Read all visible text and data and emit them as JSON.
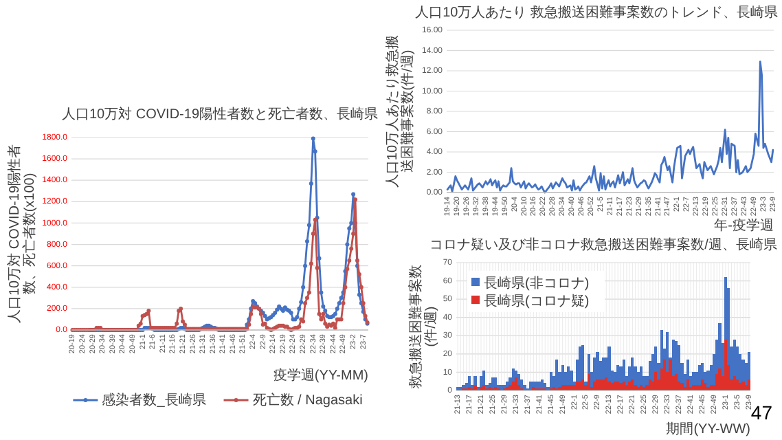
{
  "chart_data": [
    {
      "type": "line",
      "title": "人口10万対 COVID-19陽性者数と死亡者数、長崎県",
      "ylabel": "人口10万対 COVID-19陽性者数、死亡者数(x100)",
      "xlabel": "疫学週(YY-MM)",
      "ylim": [
        0,
        1800
      ],
      "categories": [
        "20-19",
        null,
        null,
        null,
        null,
        "20-24",
        null,
        null,
        null,
        null,
        "20-29",
        null,
        null,
        null,
        null,
        "20-34",
        null,
        null,
        null,
        null,
        "20-39",
        null,
        null,
        null,
        null,
        "20-44",
        null,
        null,
        null,
        null,
        "20-49",
        null,
        null,
        null,
        null,
        "21-1",
        null,
        null,
        null,
        null,
        "21-6",
        null,
        null,
        null,
        null,
        "21-11",
        null,
        null,
        null,
        null,
        "21-16",
        null,
        null,
        null,
        null,
        "21-21",
        null,
        null,
        null,
        null,
        "21-26",
        null,
        null,
        null,
        null,
        "21-31",
        null,
        null,
        null,
        null,
        "21-36",
        null,
        null,
        null,
        null,
        "21-41",
        null,
        null,
        null,
        null,
        "21-46",
        null,
        null,
        null,
        null,
        "21-51",
        null,
        null,
        null,
        null,
        "22-4",
        null,
        null,
        null,
        null,
        "22-9",
        null,
        null,
        null,
        null,
        "22-14",
        null,
        null,
        null,
        null,
        "22-19",
        null,
        null,
        null,
        null,
        "22-24",
        null,
        null,
        null,
        null,
        "22-29",
        null,
        null,
        null,
        null,
        "22-34",
        null,
        null,
        null,
        null,
        "22-39",
        null,
        null,
        null,
        null,
        "22-44",
        null,
        null,
        null,
        null,
        "22-49",
        null,
        null,
        null,
        null,
        "23-2",
        null,
        null,
        null,
        null,
        "23-7",
        null,
        null
      ],
      "yticks": [
        {
          "value": 0,
          "label": "0.0"
        },
        {
          "value": 200,
          "label": "200.0"
        },
        {
          "value": 400,
          "label": "400.0"
        },
        {
          "value": 600,
          "label": "600.0"
        },
        {
          "value": 800,
          "label": "800.0"
        },
        {
          "value": 1000,
          "label": "1000.0"
        },
        {
          "value": 1200,
          "label": "1200.0"
        },
        {
          "value": 1400,
          "label": "1400.0"
        },
        {
          "value": 1600,
          "label": "1600.0"
        },
        {
          "value": 1800,
          "label": "1800.0"
        }
      ],
      "grid": "y",
      "legend": "bottom",
      "marker": "circle",
      "series": [
        {
          "name": "感染者数_長崎県",
          "color": "#4472c4",
          "values": [
            null,
            null,
            null,
            null,
            null,
            null,
            null,
            null,
            null,
            0,
            0,
            0,
            0,
            0,
            0,
            0,
            0,
            0,
            0,
            0,
            0,
            0,
            0,
            0,
            0,
            0,
            0,
            0,
            0,
            0,
            0,
            0,
            0,
            0,
            0,
            0,
            20,
            20,
            20,
            20,
            10,
            0,
            0,
            0,
            0,
            0,
            0,
            0,
            0,
            0,
            0,
            0,
            0,
            10,
            20,
            20,
            10,
            0,
            0,
            0,
            0,
            0,
            0,
            0,
            10,
            20,
            30,
            40,
            40,
            30,
            20,
            20,
            10,
            0,
            0,
            0,
            0,
            0,
            0,
            0,
            0,
            0,
            0,
            0,
            0,
            0,
            0,
            50,
            100,
            200,
            270,
            250,
            220,
            200,
            180,
            160,
            130,
            100,
            110,
            120,
            140,
            160,
            190,
            220,
            200,
            180,
            210,
            190,
            180,
            160,
            100,
            100,
            120,
            200,
            260,
            400,
            600,
            830,
            980,
            1370,
            1790,
            1670,
            1050,
            670,
            350,
            220,
            180,
            130,
            120,
            120,
            130,
            150,
            200,
            250,
            300,
            350,
            550,
            800,
            950,
            1000,
            1270,
            1000,
            600,
            330,
            250,
            170,
            100,
            60
          ]
        },
        {
          "name": "死亡数 / Nagasaki",
          "color": "#c0504d",
          "values": [
            0,
            0,
            0,
            0,
            0,
            0,
            0,
            0,
            0,
            0,
            0,
            0,
            20,
            20,
            20,
            0,
            0,
            0,
            0,
            0,
            0,
            0,
            0,
            0,
            0,
            0,
            0,
            0,
            0,
            0,
            0,
            0,
            0,
            40,
            60,
            130,
            140,
            150,
            180,
            20,
            20,
            20,
            20,
            20,
            20,
            20,
            20,
            20,
            20,
            20,
            20,
            20,
            60,
            180,
            200,
            80,
            50,
            10,
            10,
            10,
            10,
            10,
            10,
            10,
            10,
            10,
            10,
            10,
            10,
            10,
            10,
            10,
            10,
            10,
            10,
            10,
            10,
            10,
            10,
            10,
            10,
            10,
            10,
            10,
            10,
            10,
            10,
            10,
            50,
            150,
            220,
            210,
            210,
            200,
            150,
            50,
            60,
            20,
            10,
            0,
            10,
            20,
            30,
            40,
            40,
            40,
            30,
            30,
            10,
            0,
            10,
            20,
            20,
            30,
            100,
            80,
            250,
            300,
            350,
            620,
            900,
            1030,
            580,
            150,
            100,
            150,
            60,
            30,
            50,
            40,
            60,
            20,
            100,
            100,
            100,
            250,
            400,
            570,
            650,
            760,
            900,
            1220,
            650,
            520,
            400,
            250,
            130,
            70
          ]
        }
      ]
    },
    {
      "type": "line",
      "title": "人口10万人あたり 救急搬送困難事案数のトレンド、長崎県",
      "ylabel": "人口10万人あたり救急搬送困難事案数(件/週)",
      "xlabel": "年-疫学週",
      "ylim": [
        0,
        16
      ],
      "categories": [
        "19-14",
        null,
        null,
        null,
        null,
        null,
        "19-20",
        null,
        null,
        null,
        null,
        null,
        "19-26",
        null,
        null,
        null,
        null,
        null,
        "19-32",
        null,
        null,
        null,
        null,
        null,
        "19-38",
        null,
        null,
        null,
        null,
        null,
        "19-44",
        null,
        null,
        null,
        null,
        null,
        "19-50",
        null,
        null,
        null,
        null,
        null,
        "20-4",
        null,
        null,
        null,
        null,
        null,
        "20-10",
        null,
        null,
        null,
        null,
        null,
        "20-16",
        null,
        null,
        null,
        null,
        null,
        "20-22",
        null,
        null,
        null,
        null,
        null,
        "20-28",
        null,
        null,
        null,
        null,
        null,
        "20-34",
        null,
        null,
        null,
        null,
        null,
        "20-40",
        null,
        null,
        null,
        null,
        null,
        "20-46",
        null,
        null,
        null,
        null,
        null,
        "20-52",
        null,
        null,
        null,
        null,
        null,
        "21-5",
        null,
        null,
        null,
        null,
        null,
        "21-11",
        null,
        null,
        null,
        null,
        null,
        "21-17",
        null,
        null,
        null,
        null,
        null,
        "21-23",
        null,
        null,
        null,
        null,
        null,
        "21-29",
        null,
        null,
        null,
        null,
        null,
        "21-35",
        null,
        null,
        null,
        null,
        null,
        "21-41",
        null,
        null,
        null,
        null,
        null,
        "21-47",
        null,
        null,
        null,
        null,
        null,
        "22-1",
        null,
        null,
        null,
        null,
        null,
        "22-7",
        null,
        null,
        null,
        null,
        null,
        "22-13",
        null,
        null,
        null,
        null,
        null,
        "22-19",
        null,
        null,
        null,
        null,
        null,
        "22-25",
        null,
        null,
        null,
        null,
        null,
        "22-31",
        null,
        null,
        null,
        null,
        null,
        "22-37",
        null,
        null,
        null,
        null,
        null,
        "22-43",
        null,
        null,
        null,
        null,
        null,
        "22-49",
        null,
        null,
        null,
        null,
        null,
        "23-3",
        null,
        null,
        null,
        null,
        null,
        "23-9"
      ],
      "yticks": [
        {
          "value": 0,
          "label": "0.00"
        },
        {
          "value": 2,
          "label": "2.00"
        },
        {
          "value": 4,
          "label": "4.00"
        },
        {
          "value": 6,
          "label": "6.00"
        },
        {
          "value": 8,
          "label": "8.00"
        },
        {
          "value": 10,
          "label": "10.00"
        },
        {
          "value": 12,
          "label": "12.00"
        },
        {
          "value": 14,
          "label": "14.00"
        },
        {
          "value": 16,
          "label": "16.00"
        }
      ],
      "grid": "y",
      "series": [
        {
          "color": "#4472c4",
          "values": [
            0.3,
            0.5,
            0.7,
            0.1,
            0.8,
            1.6,
            1.2,
            0.9,
            0.6,
            0.3,
            0.5,
            0.7,
            0.5,
            0.3,
            0.8,
            1.4,
            0.2,
            0.4,
            0.6,
            0.8,
            0.9,
            0.7,
            0.5,
            0.8,
            1.1,
            0.8,
            1.0,
            1.3,
            0.7,
            1.0,
            1.2,
            0.5,
            1.1,
            0.2,
            0.5,
            0.7,
            0.6,
            0.6,
            0.8,
            1.0,
            2.4,
            1.1,
            0.9,
            0.8,
            0.9,
            0.9,
            0.5,
            0.8,
            1.1,
            0.4,
            0.7,
            0.9,
            0.7,
            0.5,
            0.6,
            0.8,
            0.5,
            0.3,
            0.4,
            0.6,
            0.3,
            0.0,
            0.2,
            0.4,
            0.6,
            0.9,
            0.4,
            0.7,
            1.0,
            0.8,
            0.6,
            1.0,
            1.4,
            1.1,
            0.9,
            0.5,
            0.6,
            0.7,
            0.2,
            1.2,
            0.3,
            0.4,
            0.6,
            0.2,
            0.5,
            0.7,
            0.9,
            1.0,
            1.3,
            1.6,
            1.0,
            1.8,
            2.6,
            1.4,
            0.8,
            0.2,
            1.9,
            0.4,
            1.6,
            0.3,
            0.8,
            1.2,
            0.6,
            0.9,
            1.1,
            0.5,
            1.1,
            1.7,
            0.9,
            1.4,
            2.0,
            0.7,
            1.0,
            1.3,
            0.9,
            1.6,
            2.4,
            1.2,
            0.8,
            0.5,
            0.7,
            0.9,
            1.0,
            1.2,
            1.1,
            0.7,
            0.4,
            0.7,
            1.0,
            1.4,
            1.9,
            1.7,
            1.3,
            1.0,
            2.7,
            3.0,
            3.5,
            2.8,
            2.2,
            2.6,
            1.8,
            1.0,
            2.5,
            3.5,
            4.4,
            4.5,
            4.6,
            1.4,
            2.5,
            3.6,
            3.9,
            4.2,
            3.8,
            4.2,
            4.5,
            3.4,
            2.4,
            2.6,
            2.8,
            2.0,
            1.4,
            3.0,
            2.6,
            2.2,
            2.4,
            2.6,
            2.2,
            1.8,
            2.2,
            2.6,
            3.2,
            4.4,
            3.0,
            4.6,
            6.2,
            3.8,
            5.4,
            2.4,
            4.8,
            4.7,
            4.6,
            2.0,
            3.2,
            1.8,
            1.9,
            2.0,
            2.3,
            2.6,
            2.0,
            2.2,
            2.4,
            3.1,
            3.8,
            5.8,
            5.2,
            4.6,
            12.9,
            11.6,
            4.4,
            4.8,
            4.3,
            3.8,
            3.4,
            3.0,
            4.2
          ]
        }
      ]
    },
    {
      "type": "bar",
      "stacked": true,
      "title": "コロナ疑い及び非コロナ救急搬送困難事案数/週、長崎県",
      "ylabel": "救急搬送困難事案数(件/週)",
      "xlabel": "期間(YY-WW)",
      "ylim": [
        0,
        70
      ],
      "yticks": [
        0,
        10,
        20,
        30,
        40,
        50,
        60,
        70
      ],
      "grid": true,
      "legend": "top left",
      "annotations": [
        "47"
      ],
      "categories": [
        "21-13",
        null,
        null,
        null,
        "21-17",
        null,
        null,
        null,
        "21-21",
        null,
        null,
        null,
        "21-25",
        null,
        null,
        null,
        "21-29",
        null,
        null,
        null,
        "21-33",
        null,
        null,
        null,
        "21-37",
        null,
        null,
        null,
        "21-41",
        null,
        null,
        null,
        "21-45",
        null,
        null,
        null,
        "21-49",
        null,
        null,
        null,
        "22-1",
        null,
        null,
        null,
        "22-5",
        null,
        null,
        null,
        "22-9",
        null,
        null,
        null,
        "22-13",
        null,
        null,
        null,
        "22-17",
        null,
        null,
        null,
        "22-21",
        null,
        null,
        null,
        "22-25",
        null,
        null,
        null,
        "22-29",
        null,
        null,
        null,
        "22-33",
        null,
        null,
        null,
        "22-37",
        null,
        null,
        null,
        "22-41",
        null,
        null,
        null,
        "22-45",
        null,
        null,
        null,
        "22-49",
        null,
        null,
        null,
        "23-1",
        null,
        null,
        null,
        "23-5",
        null,
        null,
        null,
        "23-9"
      ],
      "series": [
        {
          "name": "長崎県(コロナ疑)",
          "color": "#e0302a",
          "values": [
            0,
            0,
            1,
            1,
            2,
            1,
            3,
            0,
            2,
            3,
            1,
            2,
            1,
            2,
            1,
            0,
            1,
            2,
            3,
            5,
            7,
            3,
            1,
            0,
            0,
            0,
            2,
            1,
            1,
            1,
            1,
            0,
            1,
            2,
            1,
            2,
            3,
            3,
            3,
            3,
            3,
            5,
            5,
            6,
            3,
            9,
            2,
            5,
            6,
            6,
            6,
            7,
            5,
            4,
            5,
            5,
            4,
            5,
            3,
            5,
            6,
            3,
            2,
            3,
            2,
            3,
            6,
            5,
            10,
            6,
            12,
            17,
            10,
            17,
            8,
            9,
            5,
            4,
            2,
            6,
            2,
            3,
            3,
            3,
            6,
            4,
            2,
            3,
            3,
            9,
            12,
            8,
            28,
            14,
            6,
            8,
            6,
            4,
            5,
            3,
            6
          ]
        },
        {
          "name": "長崎県(非コロナ)",
          "color": "#4472c4",
          "values": [
            2,
            2,
            2,
            3,
            6,
            2,
            5,
            2,
            6,
            8,
            2,
            2,
            6,
            5,
            2,
            3,
            2,
            3,
            4,
            7,
            4,
            6,
            5,
            3,
            1,
            5,
            3,
            4,
            4,
            5,
            3,
            2,
            9,
            6,
            16,
            8,
            11,
            7,
            10,
            8,
            2,
            12,
            19,
            19,
            2,
            11,
            8,
            13,
            15,
            10,
            12,
            11,
            19,
            7,
            5,
            9,
            9,
            12,
            5,
            8,
            12,
            10,
            8,
            10,
            6,
            5,
            10,
            15,
            14,
            9,
            21,
            6,
            22,
            1,
            20,
            18,
            20,
            11,
            7,
            11,
            6,
            7,
            7,
            11,
            9,
            6,
            9,
            11,
            17,
            19,
            25,
            18,
            34,
            42,
            18,
            20,
            18,
            16,
            12,
            12,
            15
          ]
        }
      ]
    }
  ]
}
